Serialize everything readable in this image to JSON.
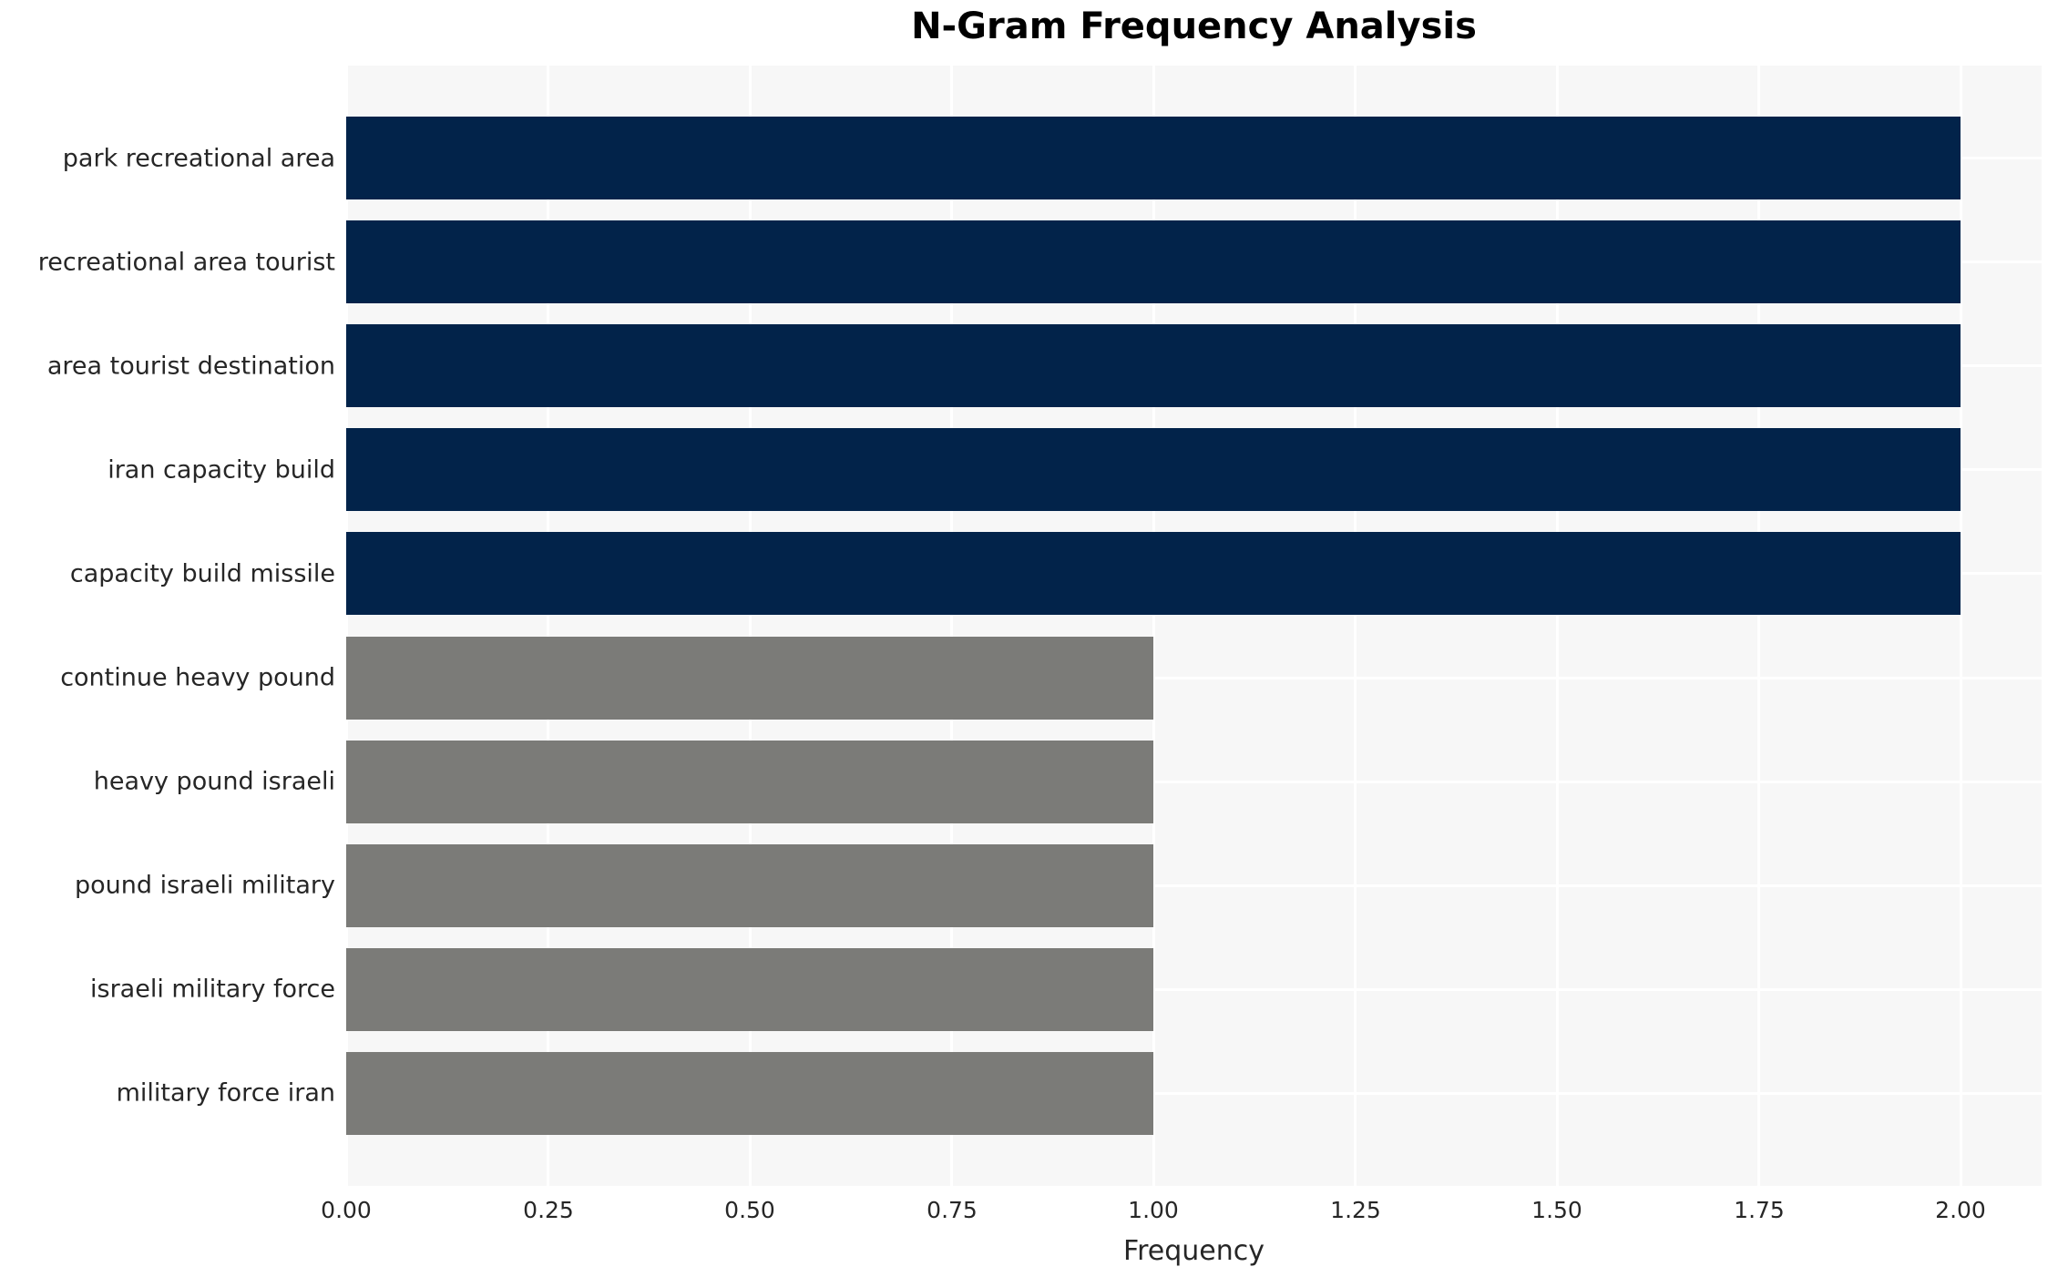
{
  "chart_data": {
    "type": "bar",
    "orientation": "horizontal",
    "title": "N-Gram Frequency Analysis",
    "xlabel": "Frequency",
    "ylabel": "",
    "categories": [
      "park recreational area",
      "recreational area tourist",
      "area tourist destination",
      "iran capacity build",
      "capacity build missile",
      "continue heavy pound",
      "heavy pound israeli",
      "pound israeli military",
      "israeli military force",
      "military force iran"
    ],
    "values": [
      2,
      2,
      2,
      2,
      2,
      1,
      1,
      1,
      1,
      1
    ],
    "bar_colors": [
      "#02234a",
      "#02234a",
      "#02234a",
      "#02234a",
      "#02234a",
      "#7b7b78",
      "#7b7b78",
      "#7b7b78",
      "#7b7b78",
      "#7b7b78"
    ],
    "xlim": [
      0,
      2.1
    ],
    "xticks": [
      0.0,
      0.25,
      0.5,
      0.75,
      1.0,
      1.25,
      1.5,
      1.75,
      2.0
    ],
    "xtick_labels": [
      "0.00",
      "0.25",
      "0.50",
      "0.75",
      "1.00",
      "1.25",
      "1.50",
      "1.75",
      "2.00"
    ],
    "grid": true,
    "legend_position": "none",
    "colors": {
      "high_freq_bar": "#02234a",
      "low_freq_bar": "#7b7b78",
      "plot_background": "#f7f7f7",
      "figure_background": "#ffffff",
      "gridline": "#ffffff",
      "tick_text": "#262626",
      "title_text": "#000000"
    }
  }
}
